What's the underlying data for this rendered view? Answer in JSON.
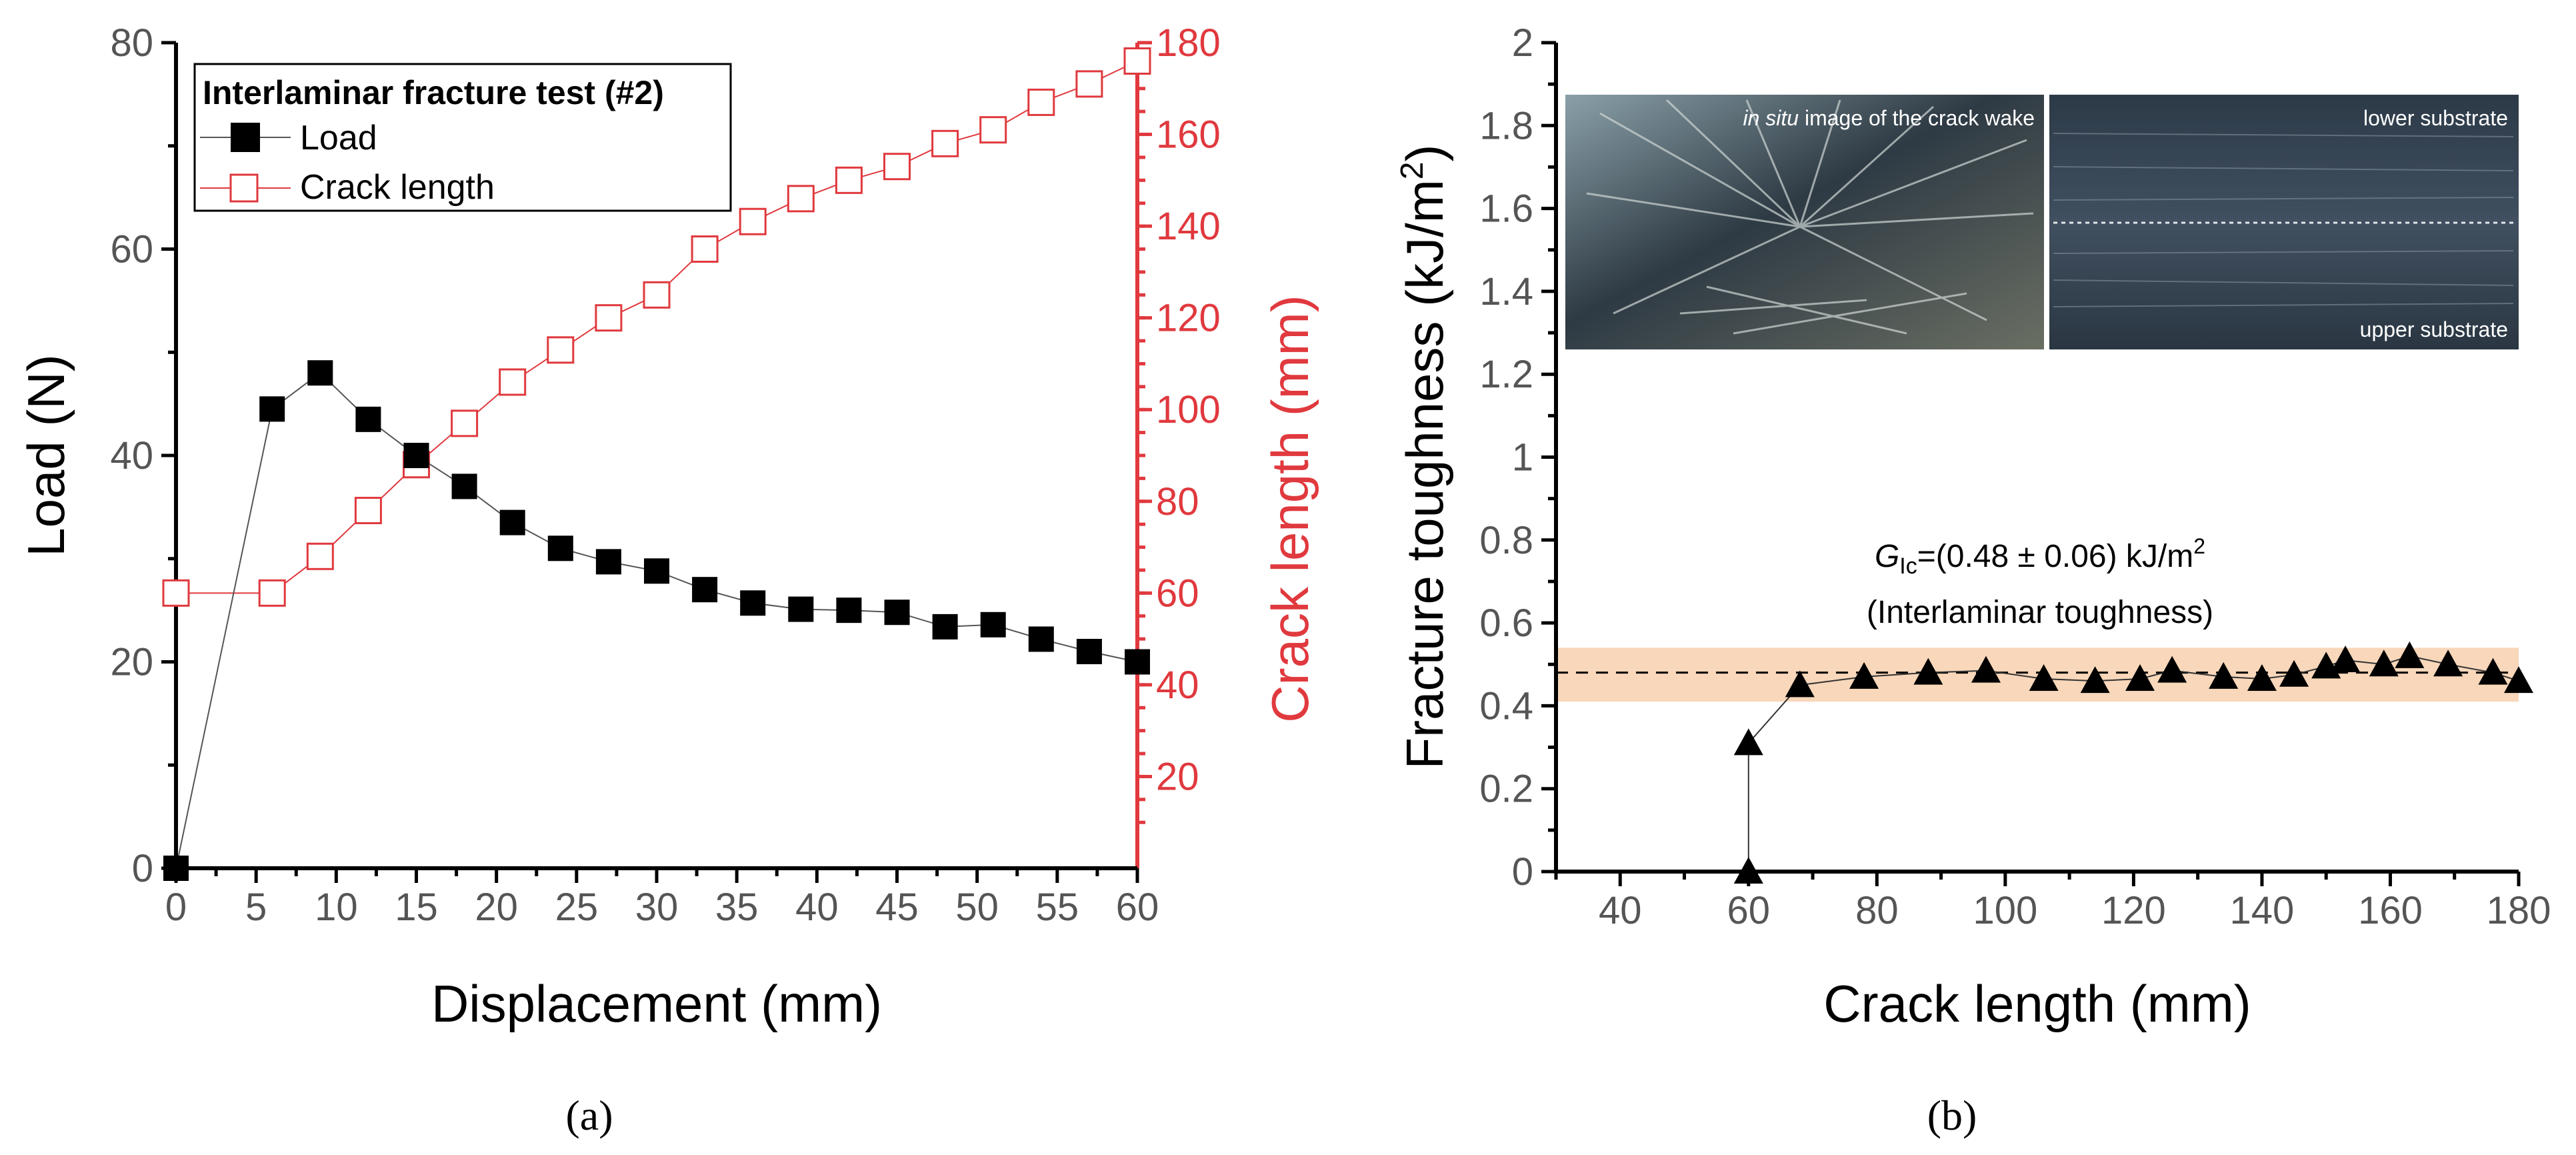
{
  "chart_data": [
    {
      "panel": "(a)",
      "type": "line",
      "xlabel": "Displacement (mm)",
      "ylabel": "Load (N)",
      "y2label": "Crack length (mm)",
      "xlim": [
        0,
        60
      ],
      "ylim": [
        0,
        80
      ],
      "y2lim": [
        0,
        180
      ],
      "xticks": [
        "0",
        "5",
        "10",
        "15",
        "20",
        "25",
        "30",
        "35",
        "40",
        "45",
        "50",
        "55",
        "60"
      ],
      "yticks": [
        "0",
        "20",
        "40",
        "60",
        "80"
      ],
      "y2ticks": [
        "20",
        "40",
        "60",
        "80",
        "100",
        "120",
        "140",
        "160",
        "180"
      ],
      "legend": {
        "title": "Interlaminar fracture test (#2)",
        "position": "top-left",
        "entries": [
          "Load",
          "Crack length"
        ]
      },
      "series": [
        {
          "name": "Load",
          "axis": "left",
          "color": "#000000",
          "marker": "filled-square",
          "x": [
            0,
            6,
            9,
            12,
            15,
            18,
            21,
            24,
            27,
            30,
            33,
            36,
            39,
            42,
            45,
            48,
            51,
            54,
            57,
            60
          ],
          "y": [
            0,
            44.5,
            48,
            43.5,
            40,
            37,
            33.5,
            31,
            29.7,
            28.8,
            27,
            25.7,
            25.1,
            25,
            24.8,
            23.4,
            23.6,
            22.2,
            21,
            20
          ]
        },
        {
          "name": "Crack length",
          "axis": "right",
          "color": "#e0393e",
          "marker": "open-square",
          "x": [
            0,
            6,
            9,
            12,
            15,
            18,
            21,
            24,
            27,
            30,
            33,
            36,
            39,
            42,
            45,
            48,
            51,
            54,
            57,
            60
          ],
          "y": [
            60,
            60,
            68,
            78,
            88,
            97,
            106,
            113,
            120,
            125,
            135,
            141,
            146,
            150,
            153,
            158,
            161,
            167,
            171,
            176
          ]
        }
      ]
    },
    {
      "panel": "(b)",
      "type": "scatter",
      "xlabel": "Crack length (mm)",
      "ylabel_main": "Fracture toughness (kJ/m",
      "ylabel_sup": "2",
      "ylabel_close": ")",
      "xlim": [
        30,
        180
      ],
      "ylim": [
        0,
        2
      ],
      "xticks": [
        "40",
        "60",
        "80",
        "100",
        "120",
        "140",
        "160",
        "180"
      ],
      "yticks": [
        "0",
        "0.2",
        "0.4",
        "0.6",
        "0.8",
        "1",
        "1.2",
        "1.4",
        "1.6",
        "1.8",
        "2"
      ],
      "mean": 0.48,
      "band": [
        0.41,
        0.54
      ],
      "annotation": {
        "g": "G",
        "sub": "Ic",
        "rest": "=(0.48 ± 0.06) kJ/m",
        "sup": "2",
        "line2": "(Interlaminar toughness)"
      },
      "inset_left_label_italic": "in situ",
      "inset_left_label_rest": " image of the crack wake",
      "inset_right_label_top": "lower substrate",
      "inset_right_label_bottom": "upper substrate",
      "series": [
        {
          "name": "Fracture toughness",
          "marker": "filled-triangle",
          "x": [
            60,
            60,
            68,
            78,
            88,
            97,
            106,
            114,
            121,
            126,
            134,
            140,
            145,
            150,
            153,
            159,
            163,
            169,
            176,
            180
          ],
          "y": [
            0,
            0.31,
            0.45,
            0.47,
            0.48,
            0.485,
            0.465,
            0.46,
            0.465,
            0.485,
            0.47,
            0.465,
            0.475,
            0.495,
            0.51,
            0.5,
            0.52,
            0.5,
            0.48,
            0.46
          ]
        }
      ]
    }
  ],
  "captions": {
    "a": "(a)",
    "b": "(b)"
  }
}
